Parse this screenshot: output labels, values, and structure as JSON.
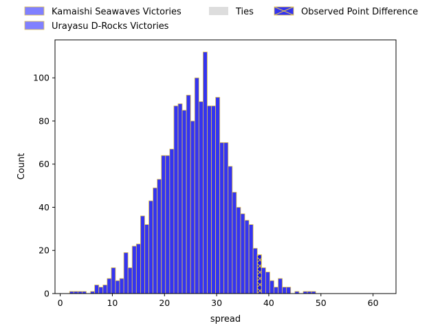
{
  "chart_data": {
    "type": "bar",
    "xlabel": "spread",
    "ylabel": "Count",
    "xlim": [
      -1,
      64.4
    ],
    "ylim": [
      0,
      117.6
    ],
    "bin_width": 0.8,
    "x_ticks": [
      0,
      10,
      20,
      30,
      40,
      50,
      60
    ],
    "y_ticks": [
      0,
      20,
      40,
      60,
      80,
      100
    ],
    "legend": {
      "placement": "top, above plot",
      "entries": [
        {
          "label": "Kamaishi Seawaves Victories",
          "color": "#8080ff"
        },
        {
          "label": "Urayasu D-Rocks Victories",
          "color": "#8080ff"
        },
        {
          "label": "Ties",
          "color": "#dddddd"
        },
        {
          "label": "Observed Point Difference",
          "color": "#3434f0"
        }
      ]
    },
    "colors": {
      "bar_fill": "#3434f0",
      "bar_edge": "#e6c84e",
      "highlight_fill": "#1414e0"
    },
    "highlight_bin_x": 37.8,
    "bins": [
      {
        "x": 1.8,
        "y": 1
      },
      {
        "x": 2.6,
        "y": 1
      },
      {
        "x": 3.4,
        "y": 1
      },
      {
        "x": 4.2,
        "y": 1
      },
      {
        "x": 5.8,
        "y": 1
      },
      {
        "x": 6.6,
        "y": 4
      },
      {
        "x": 7.4,
        "y": 3
      },
      {
        "x": 8.2,
        "y": 4
      },
      {
        "x": 9.0,
        "y": 7
      },
      {
        "x": 9.8,
        "y": 12
      },
      {
        "x": 10.6,
        "y": 6
      },
      {
        "x": 11.4,
        "y": 7
      },
      {
        "x": 12.2,
        "y": 19
      },
      {
        "x": 13.0,
        "y": 12
      },
      {
        "x": 13.8,
        "y": 22
      },
      {
        "x": 14.6,
        "y": 23
      },
      {
        "x": 15.4,
        "y": 36
      },
      {
        "x": 16.2,
        "y": 32
      },
      {
        "x": 17.0,
        "y": 43
      },
      {
        "x": 17.8,
        "y": 49
      },
      {
        "x": 18.6,
        "y": 53
      },
      {
        "x": 19.4,
        "y": 64
      },
      {
        "x": 20.2,
        "y": 64
      },
      {
        "x": 21.0,
        "y": 67
      },
      {
        "x": 21.8,
        "y": 87
      },
      {
        "x": 22.6,
        "y": 88
      },
      {
        "x": 23.4,
        "y": 85
      },
      {
        "x": 24.2,
        "y": 92
      },
      {
        "x": 25.0,
        "y": 80
      },
      {
        "x": 25.8,
        "y": 100
      },
      {
        "x": 26.6,
        "y": 89
      },
      {
        "x": 27.4,
        "y": 112
      },
      {
        "x": 28.2,
        "y": 87
      },
      {
        "x": 29.0,
        "y": 87
      },
      {
        "x": 29.8,
        "y": 91
      },
      {
        "x": 30.6,
        "y": 70
      },
      {
        "x": 31.4,
        "y": 70
      },
      {
        "x": 32.2,
        "y": 59
      },
      {
        "x": 33.0,
        "y": 47
      },
      {
        "x": 33.8,
        "y": 40
      },
      {
        "x": 34.6,
        "y": 37
      },
      {
        "x": 35.4,
        "y": 34
      },
      {
        "x": 36.2,
        "y": 32
      },
      {
        "x": 37.0,
        "y": 21
      },
      {
        "x": 37.8,
        "y": 18
      },
      {
        "x": 38.6,
        "y": 12
      },
      {
        "x": 39.4,
        "y": 10
      },
      {
        "x": 40.2,
        "y": 6
      },
      {
        "x": 41.0,
        "y": 3
      },
      {
        "x": 41.8,
        "y": 7
      },
      {
        "x": 42.6,
        "y": 3
      },
      {
        "x": 43.4,
        "y": 3
      },
      {
        "x": 45.0,
        "y": 1
      },
      {
        "x": 46.6,
        "y": 1
      },
      {
        "x": 47.4,
        "y": 1
      },
      {
        "x": 48.2,
        "y": 1
      }
    ]
  }
}
